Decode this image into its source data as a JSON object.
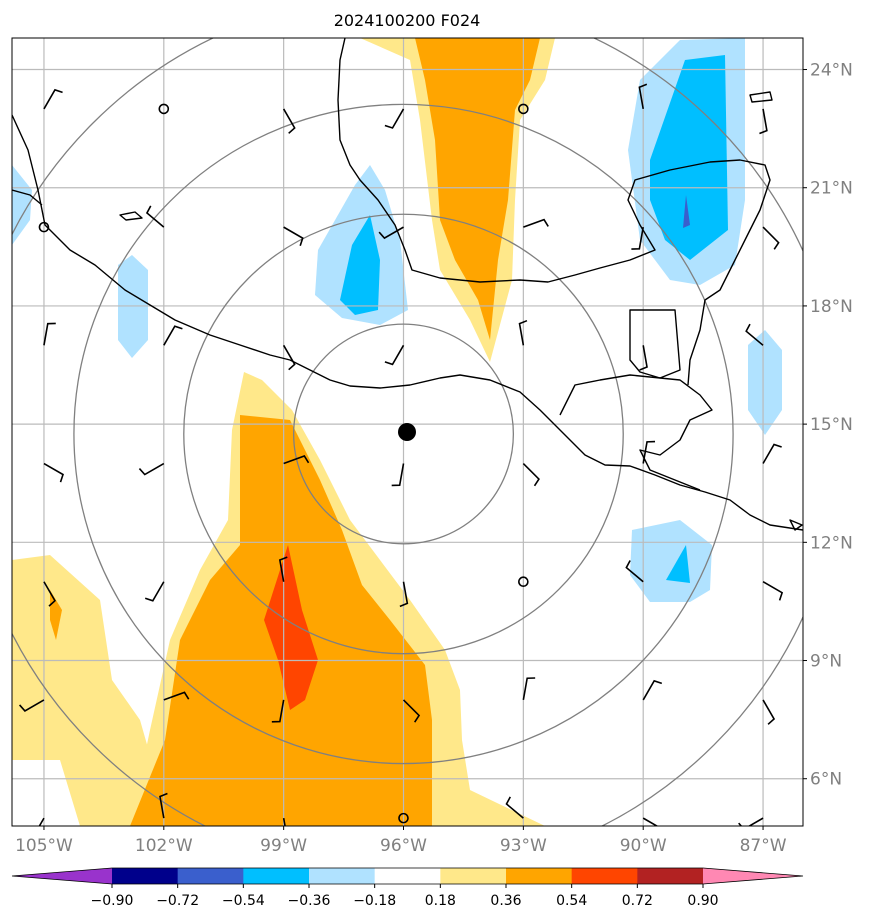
{
  "title": "2024100200 F024",
  "map": {
    "lon_range": [
      -105.8,
      -86.0
    ],
    "lat_range": [
      4.8,
      24.8
    ],
    "lat_labels": [
      {
        "value": 24,
        "text": "24°N"
      },
      {
        "value": 21,
        "text": "21°N"
      },
      {
        "value": 18,
        "text": "18°N"
      },
      {
        "value": 15,
        "text": "15°N"
      },
      {
        "value": 12,
        "text": "12°N"
      },
      {
        "value": 9,
        "text": "9°N"
      },
      {
        "value": 6,
        "text": "6°N"
      }
    ],
    "lon_labels": [
      {
        "value": -105,
        "text": "105°W"
      },
      {
        "value": -102,
        "text": "102°W"
      },
      {
        "value": -99,
        "text": "99°W"
      },
      {
        "value": -96,
        "text": "96°W"
      },
      {
        "value": -93,
        "text": "93°W"
      },
      {
        "value": -90,
        "text": "90°W"
      },
      {
        "value": -87,
        "text": "87°W"
      }
    ],
    "center": {
      "lon": -96.0,
      "lat": 14.75
    },
    "range_rings_deg": [
      2.75,
      5.5,
      8.25,
      11.0
    ],
    "grid_color": "#bbbbbb",
    "ring_color": "#808080",
    "label_color": "#808080"
  },
  "colorbar": {
    "ticks": [
      "−0.90",
      "−0.72",
      "−0.54",
      "−0.36",
      "−0.18",
      "0.18",
      "0.36",
      "0.54",
      "0.72",
      "0.90"
    ],
    "colors": [
      "#9933cc",
      "#00008b",
      "#3a5fcd",
      "#00bfff",
      "#b0e2ff",
      "#ffffff",
      "#ffe88a",
      "#ffa500",
      "#ff4500",
      "#b22222",
      "#ff88b3"
    ]
  }
}
